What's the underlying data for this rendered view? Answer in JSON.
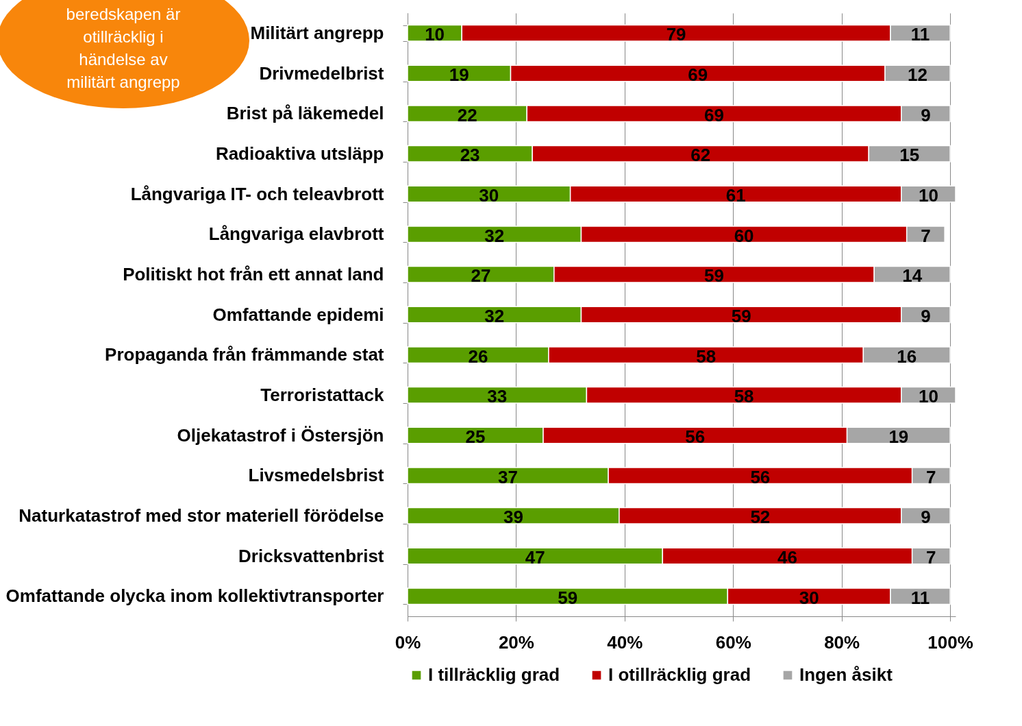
{
  "chart_data": {
    "type": "bar",
    "orientation": "horizontal",
    "stacked": true,
    "data_labels": true,
    "grid": "x",
    "legend": "bottom",
    "categories": [
      "Militärt angrepp",
      "Drivmedelbrist",
      "Brist på läkemedel",
      "Radioaktiva utsläpp",
      "Långvariga IT- och teleavbrott",
      "Långvariga elavbrott",
      "Politiskt hot från ett annat land",
      "Omfattande epidemi",
      "Propaganda från främmande stat",
      "Terroristattack",
      "Oljekatastrof i Östersjön",
      "Livsmedelsbrist",
      "Naturkatastrof med stor materiell förödelse",
      "Dricksvattenbrist",
      "Omfattande olycka inom kollektivtransporter"
    ],
    "series": [
      {
        "name": "I tillräcklig grad",
        "color": "#5a9e00",
        "values": [
          10,
          19,
          22,
          23,
          30,
          32,
          27,
          32,
          26,
          33,
          25,
          37,
          39,
          47,
          59
        ]
      },
      {
        "name": "I otillräcklig grad",
        "color": "#c00000",
        "values": [
          79,
          69,
          69,
          62,
          61,
          60,
          59,
          59,
          58,
          58,
          56,
          56,
          52,
          46,
          30
        ]
      },
      {
        "name": "Ingen åsikt",
        "color": "#a6a6a6",
        "values": [
          11,
          12,
          9,
          15,
          10,
          7,
          14,
          9,
          16,
          10,
          19,
          7,
          9,
          7,
          11
        ]
      }
    ],
    "xlim": [
      0,
      101
    ],
    "xticks": [
      {
        "value": 0,
        "label": "0%"
      },
      {
        "value": 20,
        "label": "20%"
      },
      {
        "value": 40,
        "label": "40%"
      },
      {
        "value": 60,
        "label": "60%"
      },
      {
        "value": 80,
        "label": "80%"
      },
      {
        "value": 100,
        "label": "100%"
      }
    ],
    "annotations": [
      "beredskapen är otillräcklig i händelse av militärt angrepp"
    ]
  }
}
